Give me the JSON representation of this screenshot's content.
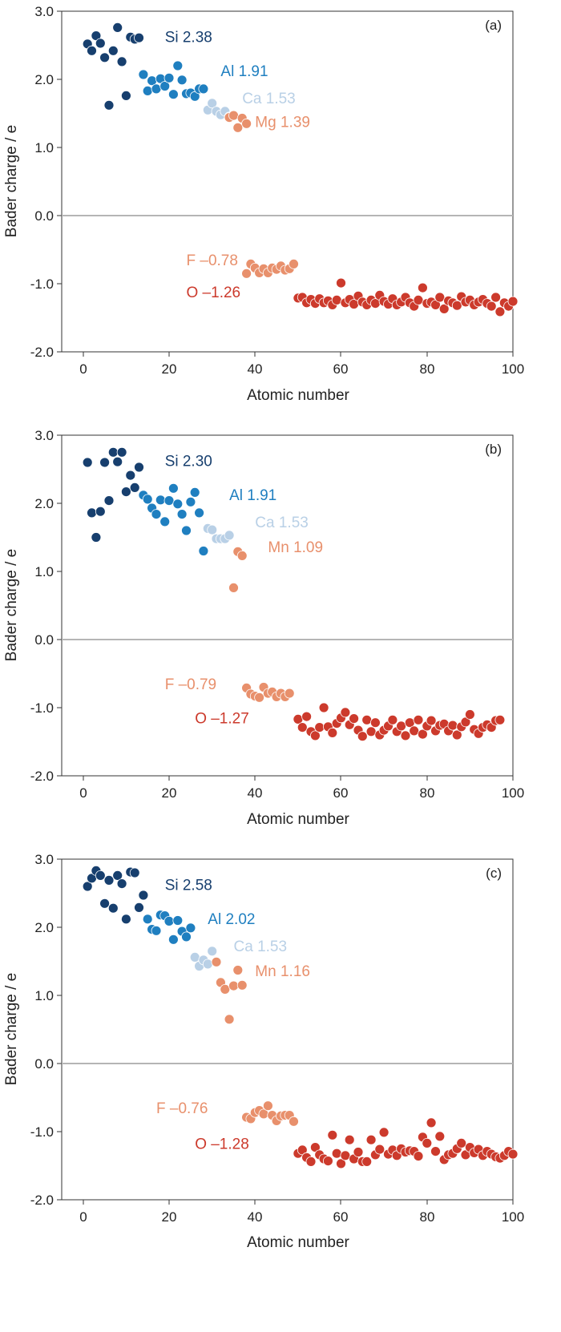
{
  "colors": {
    "Si": "#173f6e",
    "Al": "#1f7fc0",
    "Ca": "#b9d0e6",
    "M": "#e8906c",
    "F": "#e8906c",
    "O": "#cc3a2c",
    "Si_text": "#173f6e",
    "Al_text": "#1f7fc0",
    "Ca_text": "#b9d0e6",
    "M_text": "#e8906c",
    "F_text": "#e8906c",
    "O_text": "#cc3a2c"
  },
  "chart_data": [
    {
      "type": "scatter",
      "panel_label": "(a)",
      "xlabel": "Atomic number",
      "ylabel": "Bader charge / e",
      "xlim": [
        -5,
        100
      ],
      "ylim": [
        -2.0,
        3.0
      ],
      "xticks": [
        "0",
        "20",
        "40",
        "60",
        "80",
        "100"
      ],
      "yticks": [
        "3.0",
        "2.0",
        "1.0",
        "0.0",
        "-1.0",
        "-2.0"
      ],
      "annotations": [
        {
          "key": "Si",
          "text": "Si 2.38",
          "x": 19,
          "y": 2.55
        },
        {
          "key": "Al",
          "text": "Al 1.91",
          "x": 32,
          "y": 2.05
        },
        {
          "key": "Ca",
          "text": "Ca 1.53",
          "x": 37,
          "y": 1.65
        },
        {
          "key": "M",
          "text": "Mg 1.39",
          "x": 40,
          "y": 1.3
        },
        {
          "key": "F",
          "text": "F –0.78",
          "x": 24,
          "y": -0.73
        },
        {
          "key": "O",
          "text": "O –1.26",
          "x": 24,
          "y": -1.2
        }
      ],
      "series": [
        {
          "name": "Si",
          "x": [
            1,
            2,
            3,
            4,
            5,
            6,
            7,
            8,
            9,
            10,
            11,
            12,
            13
          ],
          "y": [
            2.52,
            2.42,
            2.64,
            2.53,
            2.32,
            1.62,
            2.42,
            2.76,
            2.26,
            1.76,
            2.62,
            2.59,
            2.61
          ]
        },
        {
          "name": "Al",
          "x": [
            14,
            15,
            16,
            17,
            18,
            19,
            20,
            21,
            22,
            23,
            24,
            25,
            26,
            27,
            28
          ],
          "y": [
            2.07,
            1.83,
            1.98,
            1.86,
            2.01,
            1.9,
            2.02,
            1.78,
            2.2,
            1.99,
            1.79,
            1.8,
            1.75,
            1.86,
            1.86
          ]
        },
        {
          "name": "Ca",
          "x": [
            29,
            30,
            31,
            32,
            33,
            34
          ],
          "y": [
            1.55,
            1.65,
            1.53,
            1.48,
            1.53,
            1.45
          ]
        },
        {
          "name": "Mg",
          "x": [
            34,
            35,
            36,
            37,
            38
          ],
          "y": [
            1.44,
            1.47,
            1.29,
            1.43,
            1.35
          ]
        },
        {
          "name": "F",
          "x": [
            38,
            39,
            40,
            41,
            42,
            43,
            44,
            45,
            46,
            47,
            48,
            49
          ],
          "y": [
            -0.85,
            -0.71,
            -0.77,
            -0.84,
            -0.78,
            -0.84,
            -0.77,
            -0.79,
            -0.74,
            -0.8,
            -0.78,
            -0.71
          ]
        },
        {
          "name": "O",
          "x": [
            50,
            51,
            52,
            53,
            54,
            55,
            56,
            57,
            58,
            59,
            60,
            61,
            62,
            63,
            64,
            65,
            66,
            67,
            68,
            69,
            70,
            71,
            72,
            73,
            74,
            75,
            76,
            77,
            78,
            79,
            80,
            81,
            82,
            83,
            84,
            85,
            86,
            87,
            88,
            89,
            90,
            91,
            92,
            93,
            94,
            95,
            96,
            97,
            98,
            99,
            100
          ],
          "y": [
            -1.21,
            -1.2,
            -1.28,
            -1.23,
            -1.29,
            -1.22,
            -1.28,
            -1.25,
            -1.31,
            -1.24,
            -0.99,
            -1.28,
            -1.23,
            -1.3,
            -1.18,
            -1.27,
            -1.31,
            -1.24,
            -1.29,
            -1.17,
            -1.26,
            -1.3,
            -1.22,
            -1.31,
            -1.27,
            -1.2,
            -1.28,
            -1.33,
            -1.24,
            -1.06,
            -1.29,
            -1.27,
            -1.31,
            -1.2,
            -1.37,
            -1.25,
            -1.28,
            -1.32,
            -1.19,
            -1.27,
            -1.24,
            -1.31,
            -1.27,
            -1.23,
            -1.29,
            -1.33,
            -1.2,
            -1.41,
            -1.28,
            -1.33,
            -1.26
          ]
        }
      ]
    },
    {
      "type": "scatter",
      "panel_label": "(b)",
      "xlabel": "Atomic number",
      "ylabel": "Bader charge / e",
      "xlim": [
        -5,
        100
      ],
      "ylim": [
        -2.0,
        3.0
      ],
      "xticks": [
        "0",
        "20",
        "40",
        "60",
        "80",
        "100"
      ],
      "yticks": [
        "3.0",
        "2.0",
        "1.0",
        "0.0",
        "-1.0",
        "-2.0"
      ],
      "annotations": [
        {
          "key": "Si",
          "text": "Si 2.30",
          "x": 19,
          "y": 2.55
        },
        {
          "key": "Al",
          "text": "Al 1.91",
          "x": 34,
          "y": 2.05
        },
        {
          "key": "Ca",
          "text": "Ca 1.53",
          "x": 40,
          "y": 1.65
        },
        {
          "key": "M",
          "text": "Mn 1.09",
          "x": 43,
          "y": 1.28
        },
        {
          "key": "F",
          "text": "F –0.79",
          "x": 19,
          "y": -0.73
        },
        {
          "key": "O",
          "text": "O –1.27",
          "x": 26,
          "y": -1.23
        }
      ],
      "series": [
        {
          "name": "Si",
          "x": [
            1,
            2,
            3,
            4,
            5,
            6,
            7,
            8,
            9,
            10,
            11,
            12,
            13
          ],
          "y": [
            2.6,
            1.86,
            1.5,
            1.88,
            2.6,
            2.04,
            2.75,
            2.61,
            2.75,
            2.17,
            2.41,
            2.23,
            2.53
          ]
        },
        {
          "name": "Al",
          "x": [
            14,
            15,
            16,
            17,
            18,
            19,
            20,
            21,
            22,
            23,
            24,
            25,
            26,
            27,
            28
          ],
          "y": [
            2.12,
            2.06,
            1.93,
            1.84,
            2.05,
            1.73,
            2.04,
            2.22,
            1.99,
            1.84,
            1.6,
            2.02,
            2.16,
            1.86,
            1.3
          ]
        },
        {
          "name": "Ca",
          "x": [
            29,
            30,
            31,
            32,
            33,
            34
          ],
          "y": [
            1.63,
            1.61,
            1.48,
            1.48,
            1.48,
            1.53
          ]
        },
        {
          "name": "Mn",
          "x": [
            35,
            36,
            37
          ],
          "y": [
            0.76,
            1.29,
            1.23
          ]
        },
        {
          "name": "F",
          "x": [
            38,
            39,
            40,
            41,
            42,
            43,
            44,
            45,
            46,
            47,
            48
          ],
          "y": [
            -0.71,
            -0.8,
            -0.83,
            -0.85,
            -0.7,
            -0.79,
            -0.77,
            -0.84,
            -0.79,
            -0.84,
            -0.79
          ]
        },
        {
          "name": "O",
          "x": [
            50,
            51,
            52,
            53,
            54,
            55,
            56,
            57,
            58,
            59,
            60,
            61,
            62,
            63,
            64,
            65,
            66,
            67,
            68,
            69,
            70,
            71,
            72,
            73,
            74,
            75,
            76,
            77,
            78,
            79,
            80,
            81,
            82,
            83,
            84,
            85,
            86,
            87,
            88,
            89,
            90,
            91,
            92,
            93,
            94,
            95,
            96,
            97
          ],
          "y": [
            -1.17,
            -1.29,
            -1.13,
            -1.35,
            -1.41,
            -1.29,
            -1.0,
            -1.28,
            -1.37,
            -1.23,
            -1.15,
            -1.07,
            -1.25,
            -1.16,
            -1.33,
            -1.42,
            -1.18,
            -1.35,
            -1.22,
            -1.4,
            -1.33,
            -1.27,
            -1.18,
            -1.35,
            -1.27,
            -1.41,
            -1.22,
            -1.34,
            -1.18,
            -1.39,
            -1.27,
            -1.19,
            -1.34,
            -1.26,
            -1.24,
            -1.34,
            -1.26,
            -1.4,
            -1.28,
            -1.21,
            -1.1,
            -1.32,
            -1.38,
            -1.29,
            -1.25,
            -1.29,
            -1.19,
            -1.18
          ]
        }
      ]
    },
    {
      "type": "scatter",
      "panel_label": "(c)",
      "xlabel": "Atomic number",
      "ylabel": "Bader charge / e",
      "xlim": [
        -5,
        100
      ],
      "ylim": [
        -2.0,
        3.0
      ],
      "xticks": [
        "0",
        "20",
        "40",
        "60",
        "80",
        "100"
      ],
      "yticks": [
        "3.0",
        "2.0",
        "1.0",
        "0.0",
        "-1.0",
        "-2.0"
      ],
      "annotations": [
        {
          "key": "Si",
          "text": "Si 2.58",
          "x": 19,
          "y": 2.55
        },
        {
          "key": "Al",
          "text": "Al 2.02",
          "x": 29,
          "y": 2.05
        },
        {
          "key": "Ca",
          "text": "Ca 1.53",
          "x": 35,
          "y": 1.65
        },
        {
          "key": "M",
          "text": "Mn 1.16",
          "x": 40,
          "y": 1.28
        },
        {
          "key": "F",
          "text": "F –0.76",
          "x": 17,
          "y": -0.73
        },
        {
          "key": "O",
          "text": "O –1.28",
          "x": 26,
          "y": -1.25
        }
      ],
      "series": [
        {
          "name": "Si",
          "x": [
            1,
            2,
            3,
            4,
            5,
            6,
            7,
            8,
            9,
            10,
            11,
            12,
            13,
            14
          ],
          "y": [
            2.6,
            2.72,
            2.83,
            2.76,
            2.35,
            2.69,
            2.28,
            2.76,
            2.64,
            2.12,
            2.81,
            2.8,
            2.29,
            2.47
          ]
        },
        {
          "name": "Al",
          "x": [
            15,
            16,
            17,
            18,
            19,
            20,
            21,
            22,
            23,
            24,
            25
          ],
          "y": [
            2.12,
            1.97,
            1.95,
            2.18,
            2.17,
            2.09,
            1.82,
            2.1,
            1.94,
            1.86,
            1.99
          ]
        },
        {
          "name": "Ca",
          "x": [
            26,
            27,
            28,
            29,
            30
          ],
          "y": [
            1.56,
            1.43,
            1.52,
            1.46,
            1.65
          ]
        },
        {
          "name": "Mn",
          "x": [
            31,
            32,
            33,
            34,
            35,
            36,
            37
          ],
          "y": [
            1.49,
            1.19,
            1.09,
            0.65,
            1.14,
            1.37,
            1.15
          ]
        },
        {
          "name": "F",
          "x": [
            38,
            39,
            40,
            41,
            42,
            43,
            44,
            45,
            46,
            47,
            48,
            49
          ],
          "y": [
            -0.79,
            -0.81,
            -0.72,
            -0.69,
            -0.74,
            -0.62,
            -0.76,
            -0.84,
            -0.77,
            -0.76,
            -0.76,
            -0.85
          ]
        },
        {
          "name": "O",
          "x": [
            50,
            51,
            52,
            53,
            54,
            55,
            56,
            57,
            58,
            59,
            60,
            61,
            62,
            63,
            64,
            65,
            66,
            67,
            68,
            69,
            70,
            71,
            72,
            73,
            74,
            75,
            76,
            77,
            78,
            79,
            80,
            81,
            82,
            83,
            84,
            85,
            86,
            87,
            88,
            89,
            90,
            91,
            92,
            93,
            94,
            95,
            96,
            97,
            98,
            99,
            100
          ],
          "y": [
            -1.32,
            -1.27,
            -1.38,
            -1.44,
            -1.23,
            -1.34,
            -1.4,
            -1.43,
            -1.05,
            -1.32,
            -1.47,
            -1.35,
            -1.12,
            -1.4,
            -1.3,
            -1.44,
            -1.44,
            -1.12,
            -1.34,
            -1.26,
            -1.01,
            -1.33,
            -1.27,
            -1.35,
            -1.25,
            -1.3,
            -1.28,
            -1.29,
            -1.36,
            -1.08,
            -1.17,
            -0.87,
            -1.29,
            -1.07,
            -1.41,
            -1.34,
            -1.32,
            -1.25,
            -1.17,
            -1.34,
            -1.23,
            -1.31,
            -1.26,
            -1.35,
            -1.29,
            -1.33,
            -1.37,
            -1.39,
            -1.35,
            -1.29,
            -1.33
          ]
        }
      ]
    }
  ]
}
